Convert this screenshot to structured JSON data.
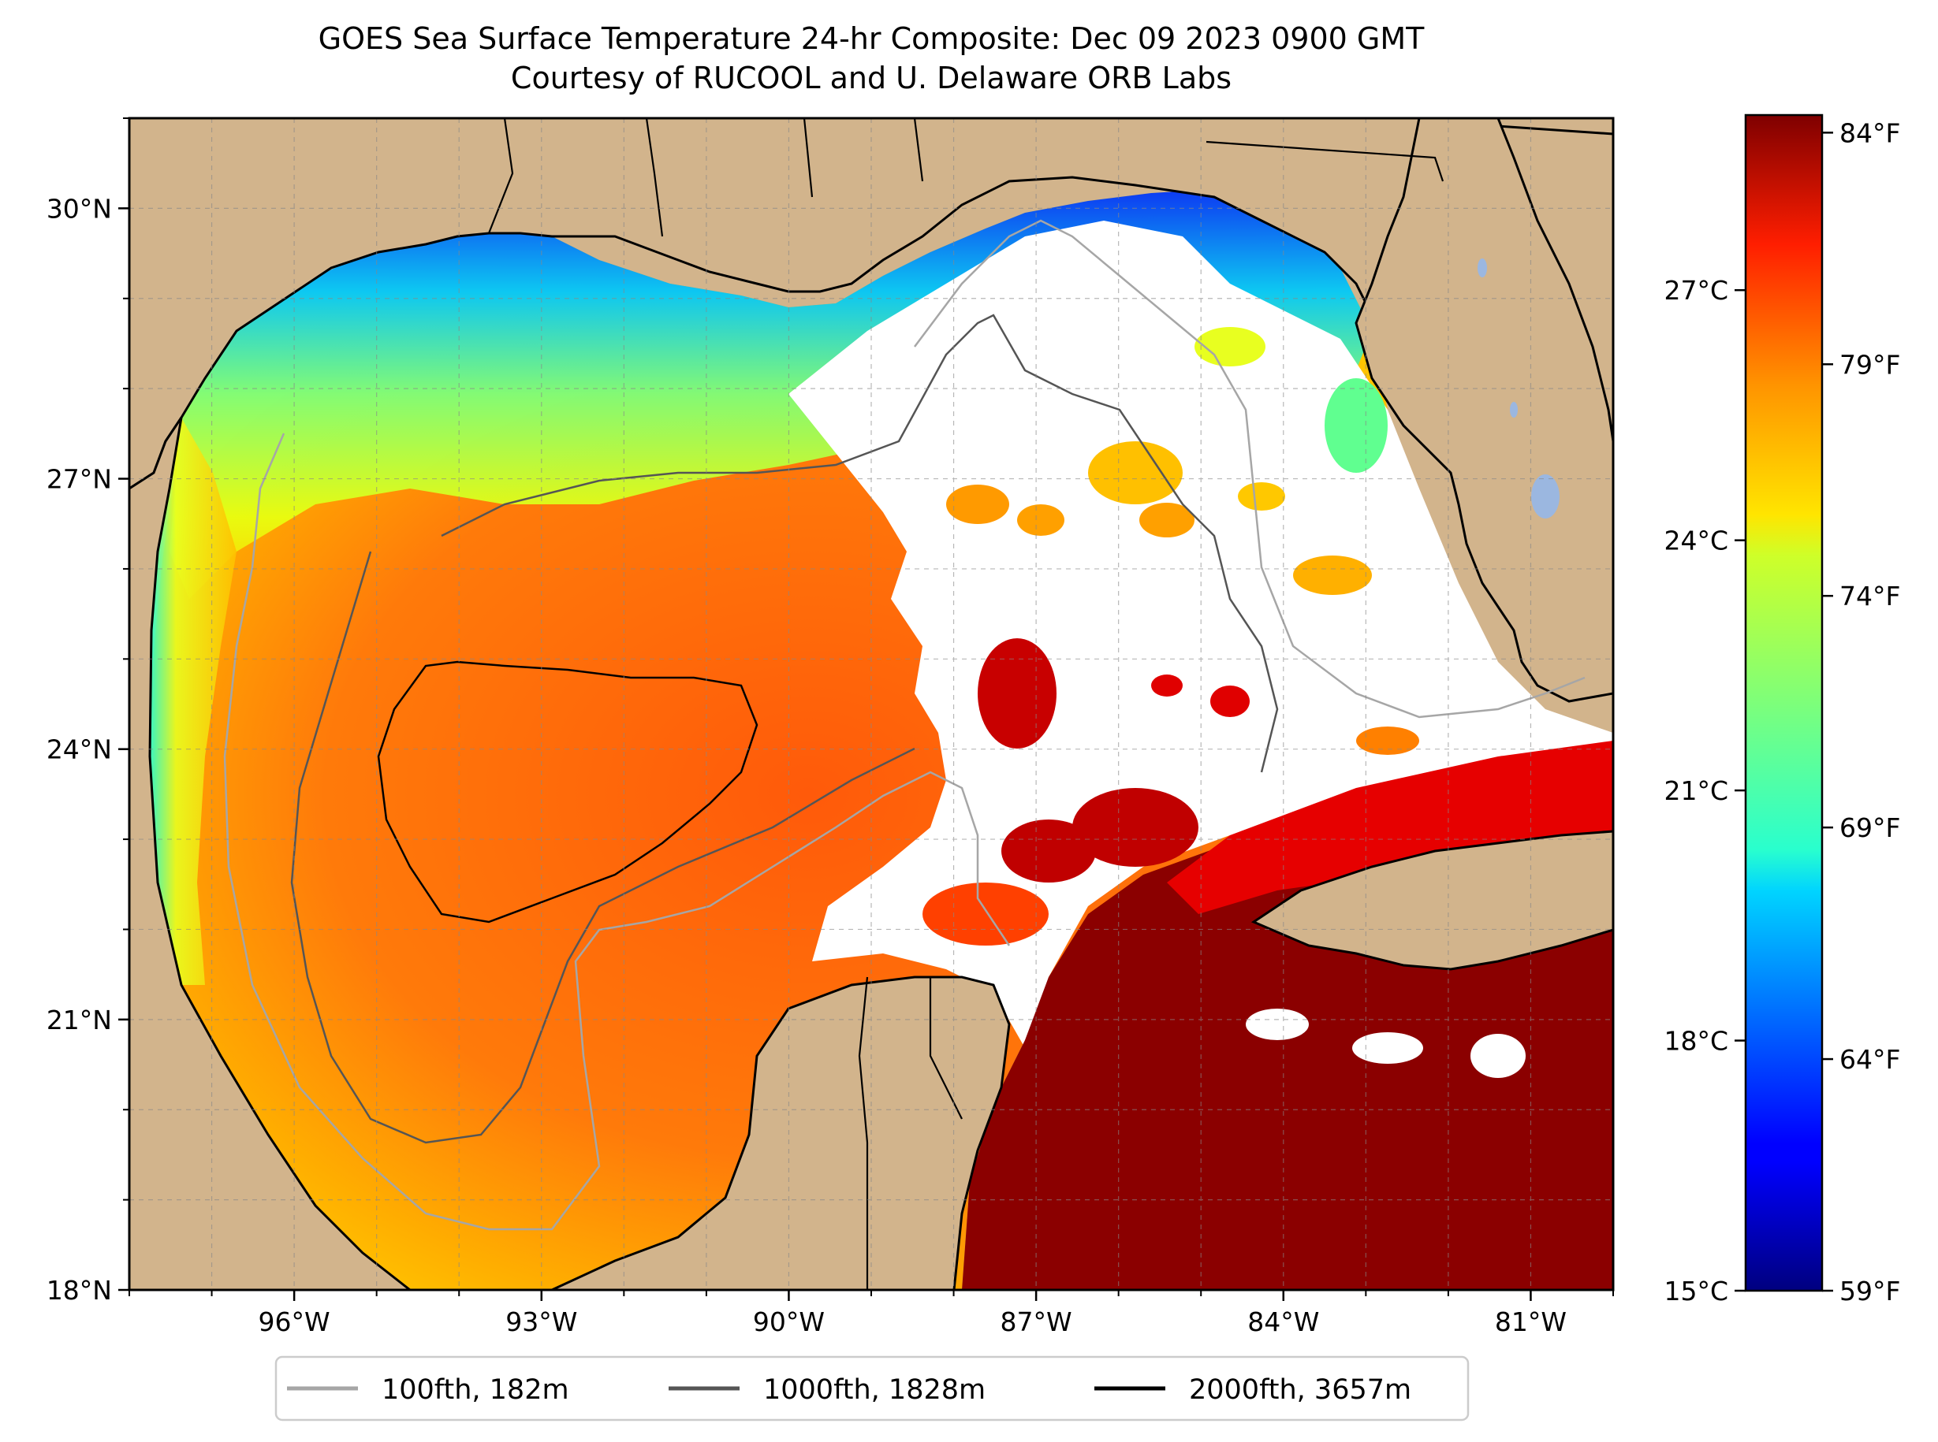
{
  "title": {
    "line1": "GOES Sea Surface Temperature 24-hr Composite: Dec 09 2023 0900 GMT",
    "line2": "Courtesy of RUCOOL and U. Delaware ORB Labs"
  },
  "map": {
    "lon_range_deg": [
      -98,
      -80
    ],
    "lat_range_deg": [
      18,
      31
    ],
    "lon_ticks": [
      {
        "value": -96,
        "label": "96°W"
      },
      {
        "value": -93,
        "label": "93°W"
      },
      {
        "value": -90,
        "label": "90°W"
      },
      {
        "value": -87,
        "label": "87°W"
      },
      {
        "value": -84,
        "label": "84°W"
      },
      {
        "value": -81,
        "label": "81°W"
      }
    ],
    "lat_ticks": [
      {
        "value": 30,
        "label": "30°N"
      },
      {
        "value": 27,
        "label": "27°N"
      },
      {
        "value": 24,
        "label": "24°N"
      },
      {
        "value": 21,
        "label": "21°N"
      },
      {
        "value": 18,
        "label": "18°N"
      }
    ],
    "gridlines": true,
    "land_color": "#d2b48c",
    "no_data_color": "#ffffff",
    "lake_color": "#9bb7e0"
  },
  "colorbar": {
    "colormap": "jet",
    "fahrenheit_ticks": [
      {
        "value": 84,
        "label": "84°F"
      },
      {
        "value": 79,
        "label": "79°F"
      },
      {
        "value": 74,
        "label": "74°F"
      },
      {
        "value": 69,
        "label": "69°F"
      },
      {
        "value": 64,
        "label": "64°F"
      },
      {
        "value": 59,
        "label": "59°F"
      }
    ],
    "celsius_ticks": [
      {
        "value": 27,
        "label": "27°C"
      },
      {
        "value": 24,
        "label": "24°C"
      },
      {
        "value": 21,
        "label": "21°C"
      },
      {
        "value": 18,
        "label": "18°C"
      },
      {
        "value": 15,
        "label": "15°C"
      }
    ],
    "range_celsius": [
      15,
      29.1
    ]
  },
  "legend": {
    "items": [
      {
        "label": "100fth, 182m",
        "color": "#a6a6a6"
      },
      {
        "label": "1000fth, 1828m",
        "color": "#555555"
      },
      {
        "label": "2000fth, 3657m",
        "color": "#000000"
      }
    ]
  }
}
